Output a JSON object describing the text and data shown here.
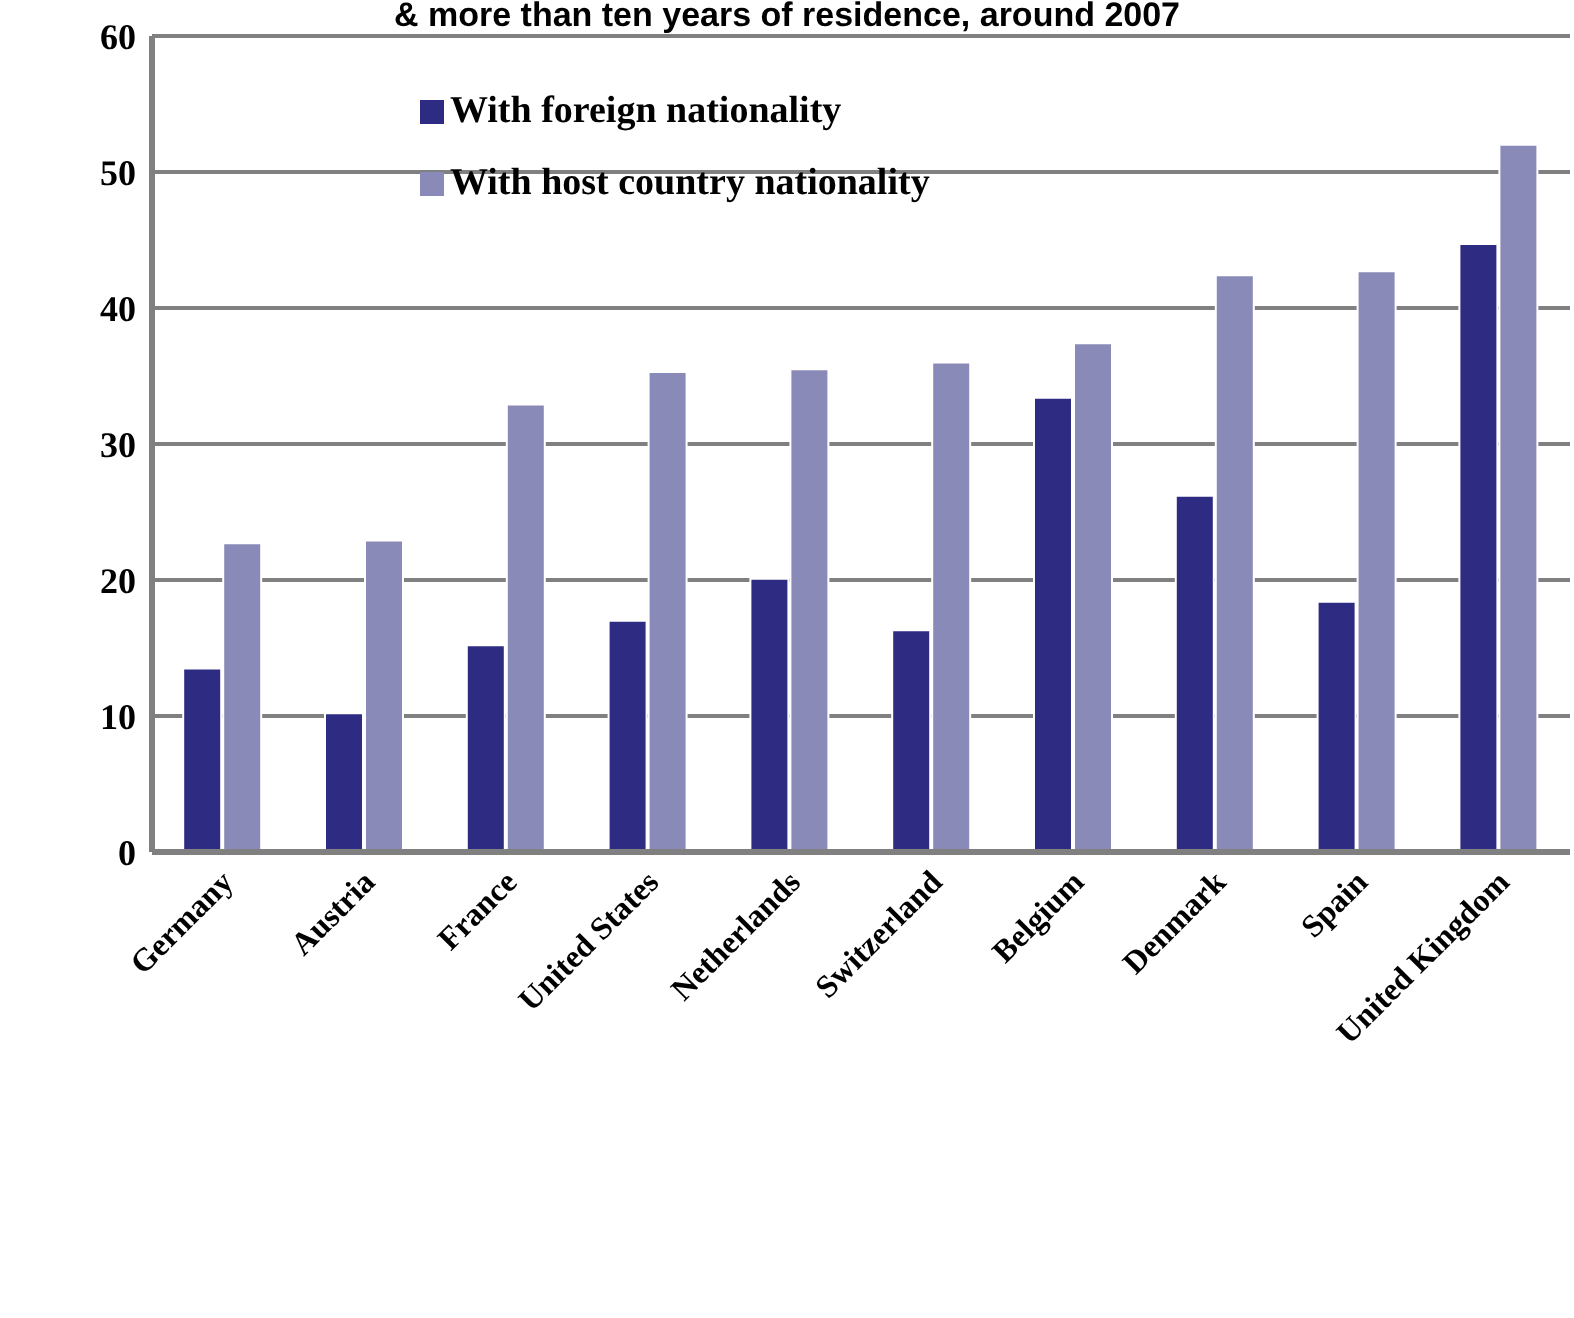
{
  "chart_data": {
    "type": "bar",
    "title": "& more than ten years of residence, around 2007",
    "categories": [
      "Germany",
      "Austria",
      "France",
      "United States",
      "Netherlands",
      "Switzerland",
      "Belgium",
      "Denmark",
      "Spain",
      "United Kingdom"
    ],
    "series": [
      {
        "name": "With foreign nationality",
        "color": "#2e2b82",
        "values": [
          13.5,
          10.2,
          15.2,
          17.0,
          20.1,
          16.3,
          33.4,
          26.2,
          18.4,
          44.7
        ]
      },
      {
        "name": "With host country nationality",
        "color": "#8a8ab8",
        "values": [
          22.7,
          22.9,
          32.9,
          35.3,
          35.5,
          36.0,
          37.4,
          42.4,
          42.7,
          52.0
        ]
      }
    ],
    "ylim": [
      0,
      60
    ],
    "yticks": [
      0,
      10,
      20,
      30,
      40,
      50,
      60
    ],
    "grid": "y",
    "legend": "top left"
  }
}
